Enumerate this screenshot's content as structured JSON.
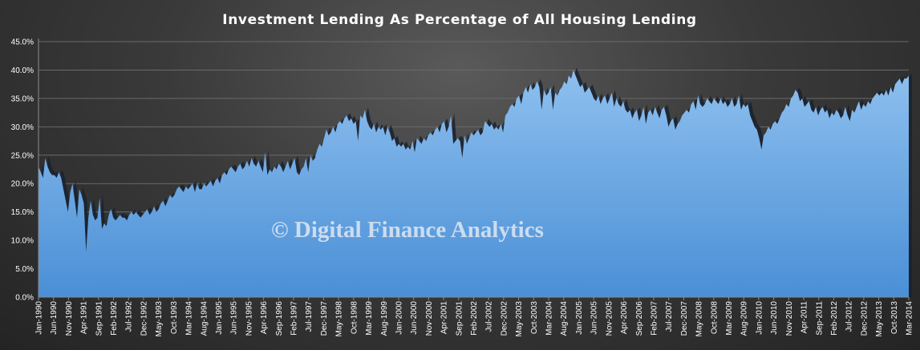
{
  "chart_data": {
    "type": "area",
    "title": "Investment Lending As Percentage of All Housing Lending",
    "watermark": "© Digital Finance Analytics",
    "xlabel": "",
    "ylabel": "",
    "ylim": [
      0,
      45
    ],
    "yticks": [
      "0.0%",
      "5.0%",
      "10.0%",
      "15.0%",
      "20.0%",
      "25.0%",
      "30.0%",
      "35.0%",
      "40.0%",
      "45.0%"
    ],
    "xticks": [
      "Jan-1990",
      "Jun-1990",
      "Nov-1990",
      "Apr-1991",
      "Sep-1991",
      "Feb-1992",
      "Jul-1992",
      "Dec-1992",
      "May-1993",
      "Oct-1993",
      "Mar-1994",
      "Aug-1994",
      "Jan-1995",
      "Jun-1995",
      "Nov-1995",
      "Apr-1996",
      "Sep-1996",
      "Feb-1997",
      "Jul-1997",
      "Dec-1997",
      "May-1998",
      "Oct-1998",
      "Mar-1999",
      "Aug-1999",
      "Jan-2000",
      "Jun-2000",
      "Nov-2000",
      "Apr-2001",
      "Sep-2001",
      "Feb-2002",
      "Jul-2002",
      "Dec-2002",
      "May-2003",
      "Oct-2003",
      "Mar-2004",
      "Aug-2004",
      "Jan-2005",
      "Jun-2005",
      "Nov-2005",
      "Apr-2006",
      "Sep-2006",
      "Feb-2007",
      "Jul-2007",
      "Dec-2007",
      "May-2008",
      "Oct-2008",
      "Mar-2009",
      "Aug-2009",
      "Jan-2010",
      "Jun-2010",
      "Nov-2010",
      "Apr-2011",
      "Sep-2011",
      "Feb-2012",
      "Jul-2012",
      "Dec-2012",
      "May-2013",
      "Oct-2013",
      "Mar-2014"
    ],
    "x_start": "Jan-1990",
    "x_end": "Mar-2014",
    "grid": true,
    "legend": "none",
    "fill_color_top": "#8ec0ef",
    "fill_color_bottom": "#4a8fd6",
    "shadow_color": "#1a2230",
    "series": [
      {
        "values": [
          23.0,
          22.0,
          21.0,
          24.5,
          23.0,
          22.0,
          21.5,
          21.5,
          21.0,
          22.0,
          21.0,
          19.0,
          17.0,
          15.0,
          18.5,
          20.0,
          17.0,
          14.0,
          19.0,
          18.0,
          16.5,
          8.0,
          14.0,
          17.0,
          14.5,
          13.5,
          14.0,
          17.5,
          12.0,
          13.0,
          12.5,
          14.5,
          15.5,
          14.0,
          13.5,
          14.0,
          14.5,
          14.0,
          14.0,
          13.5,
          14.5,
          15.0,
          14.5,
          15.0,
          14.5,
          14.0,
          14.5,
          15.0,
          15.5,
          14.5,
          15.0,
          16.0,
          15.0,
          15.5,
          16.5,
          17.0,
          16.0,
          17.0,
          18.0,
          17.5,
          18.0,
          19.0,
          19.5,
          19.0,
          18.5,
          19.5,
          19.0,
          19.5,
          20.0,
          18.5,
          20.0,
          19.0,
          19.0,
          20.0,
          19.5,
          20.0,
          20.5,
          19.5,
          20.5,
          21.0,
          20.0,
          21.5,
          22.0,
          21.5,
          22.5,
          23.0,
          22.5,
          22.0,
          23.0,
          23.5,
          22.5,
          23.0,
          24.0,
          23.0,
          24.5,
          23.5,
          23.0,
          24.0,
          23.0,
          22.0,
          25.5,
          21.5,
          22.5,
          22.0,
          23.0,
          22.5,
          23.5,
          23.0,
          22.0,
          23.0,
          24.0,
          22.5,
          23.5,
          24.5,
          22.0,
          21.5,
          22.5,
          23.0,
          24.5,
          22.0,
          25.0,
          24.0,
          24.5,
          26.0,
          27.0,
          26.5,
          28.0,
          29.5,
          28.5,
          29.0,
          30.0,
          29.0,
          30.5,
          31.0,
          30.5,
          31.5,
          32.0,
          31.0,
          31.5,
          30.5,
          31.0,
          27.5,
          32.0,
          31.5,
          33.0,
          31.0,
          30.0,
          29.5,
          30.5,
          29.0,
          30.0,
          29.5,
          30.0,
          28.5,
          30.0,
          29.0,
          27.5,
          28.0,
          26.5,
          27.0,
          26.5,
          27.0,
          26.0,
          26.5,
          26.0,
          27.5,
          25.5,
          28.0,
          27.5,
          27.0,
          28.0,
          27.5,
          28.5,
          29.0,
          28.5,
          29.5,
          30.0,
          29.0,
          30.5,
          31.0,
          29.0,
          30.0,
          32.0,
          27.0,
          27.5,
          28.0,
          27.5,
          24.5,
          28.5,
          27.0,
          28.0,
          29.0,
          28.5,
          29.0,
          29.5,
          28.5,
          29.0,
          31.0,
          30.5,
          30.0,
          30.5,
          29.5,
          30.0,
          29.5,
          30.5,
          29.0,
          32.0,
          32.5,
          33.5,
          34.0,
          33.5,
          35.0,
          35.5,
          34.0,
          36.0,
          37.0,
          36.0,
          37.5,
          36.5,
          37.0,
          38.0,
          37.0,
          33.0,
          36.5,
          35.5,
          36.0,
          37.0,
          33.0,
          36.0,
          35.5,
          36.5,
          37.0,
          38.0,
          37.5,
          39.0,
          38.5,
          40.0,
          39.0,
          38.0,
          37.0,
          37.5,
          36.0,
          36.5,
          37.0,
          36.0,
          35.0,
          34.5,
          35.5,
          34.0,
          35.0,
          35.5,
          34.0,
          35.0,
          36.0,
          33.5,
          35.0,
          34.0,
          33.5,
          34.5,
          33.0,
          32.5,
          33.0,
          31.5,
          32.5,
          33.0,
          31.0,
          32.0,
          33.5,
          30.5,
          32.5,
          33.0,
          32.0,
          33.5,
          32.5,
          31.5,
          33.0,
          33.5,
          32.0,
          30.0,
          31.0,
          31.5,
          29.5,
          30.5,
          31.0,
          32.0,
          32.5,
          33.0,
          32.5,
          34.0,
          34.5,
          33.0,
          35.5,
          34.0,
          33.5,
          34.0,
          35.0,
          34.5,
          34.0,
          35.0,
          34.5,
          34.0,
          35.0,
          34.0,
          34.5,
          33.5,
          34.0,
          35.0,
          33.5,
          34.0,
          35.5,
          33.0,
          34.0,
          33.5,
          34.0,
          32.0,
          31.0,
          30.0,
          29.5,
          28.0,
          26.0,
          28.5,
          29.0,
          30.0,
          29.5,
          30.5,
          31.0,
          30.5,
          31.5,
          32.5,
          33.0,
          34.0,
          33.5,
          35.0,
          35.5,
          36.5,
          36.0,
          34.5,
          35.0,
          33.5,
          34.0,
          34.5,
          33.0,
          32.5,
          33.5,
          32.0,
          33.0,
          33.5,
          32.5,
          33.0,
          31.5,
          32.5,
          32.0,
          33.0,
          32.5,
          31.5,
          32.0,
          33.5,
          32.0,
          31.0,
          33.0,
          32.5,
          33.5,
          34.5,
          33.0,
          34.0,
          33.5,
          34.5,
          34.0,
          35.0,
          35.5,
          36.0,
          35.5,
          36.0,
          35.5,
          36.5,
          35.5,
          37.0,
          36.0,
          37.5,
          38.0,
          38.5,
          37.5,
          38.5,
          38.5,
          39.0
        ]
      }
    ]
  }
}
